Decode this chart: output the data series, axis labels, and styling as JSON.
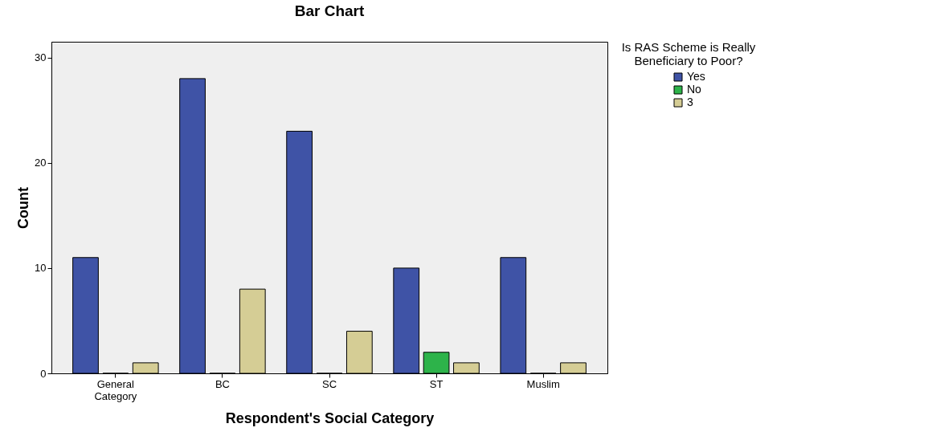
{
  "chart_data": {
    "type": "bar",
    "title": "Bar Chart",
    "xlabel": "Respondent's Social Category",
    "ylabel": "Count",
    "legend_title": "Is RAS Scheme is Really Beneficiary to Poor?",
    "categories": [
      "General Category",
      "BC",
      "SC",
      "ST",
      "Muslim"
    ],
    "series": [
      {
        "name": "Yes",
        "color": "#3f53a6",
        "values": [
          11,
          28,
          23,
          10,
          11
        ]
      },
      {
        "name": "No",
        "color": "#2db34a",
        "values": [
          0,
          0,
          0,
          2,
          0
        ]
      },
      {
        "name": "3",
        "color": "#d5cd95",
        "values": [
          1,
          8,
          4,
          1,
          1
        ]
      }
    ],
    "ylim": [
      0,
      31.5
    ],
    "yticks": [
      0,
      10,
      20,
      30
    ],
    "grid": false,
    "legend": "top right"
  }
}
